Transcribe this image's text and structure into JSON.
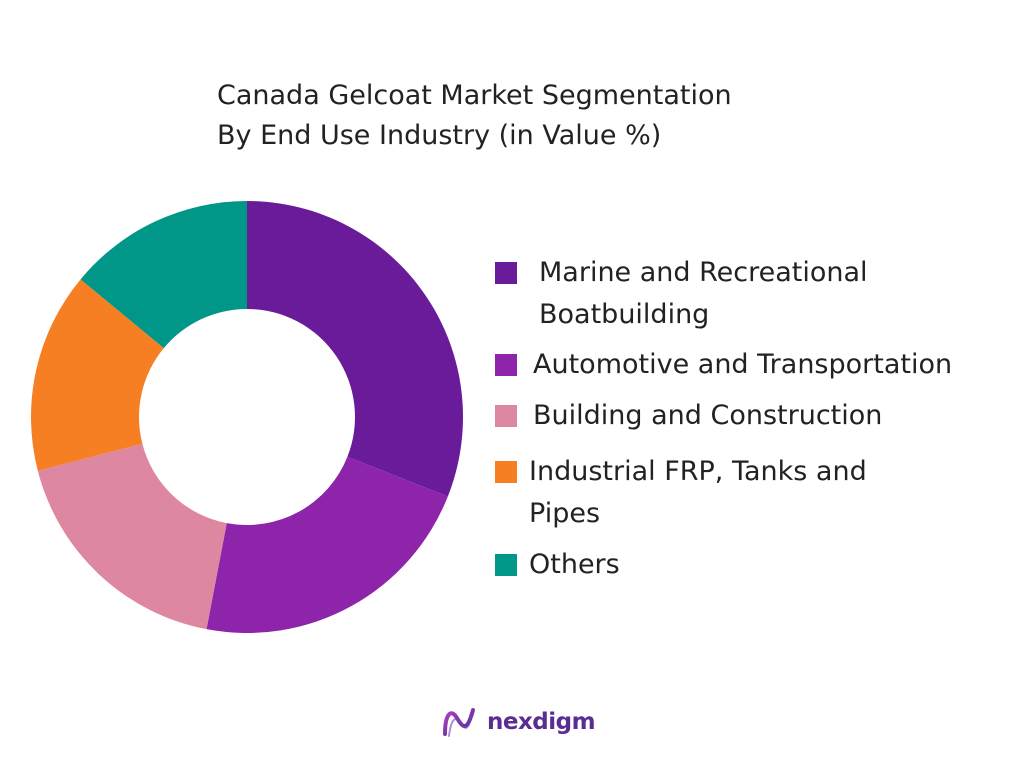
{
  "title_line1": "Canada Gelcoat Market Segmentation",
  "title_line2": "By End Use Industry (in Value %)",
  "brand": "nexdigm",
  "chart_data": {
    "type": "pie",
    "donut": true,
    "title": "Canada Gelcoat Market Segmentation By End Use Industry (in Value %)",
    "legend_position": "right",
    "categories": [
      "Marine and Recreational Boatbuilding",
      "Automotive and Transportation",
      "Building and Construction",
      "Industrial FRP, Tanks and Pipes",
      "Others"
    ],
    "values": [
      31,
      22,
      18,
      15,
      14
    ],
    "colors": [
      "#6a1b9a",
      "#8e24aa",
      "#de87a0",
      "#f57f22",
      "#009688"
    ]
  },
  "legend": {
    "items": [
      {
        "label_line1": "Marine and Recreational",
        "label_line2": "Boatbuilding",
        "color": "#6a1b9a"
      },
      {
        "label_line1": "Automotive and Transportation",
        "label_line2": "",
        "color": "#8e24aa"
      },
      {
        "label_line1": "Building and Construction",
        "label_line2": "",
        "color": "#de87a0"
      },
      {
        "label_line1": "Industrial FRP, Tanks and",
        "label_line2": "Pipes",
        "color": "#f57f22"
      },
      {
        "label_line1": "Others",
        "label_line2": "",
        "color": "#009688"
      }
    ]
  }
}
